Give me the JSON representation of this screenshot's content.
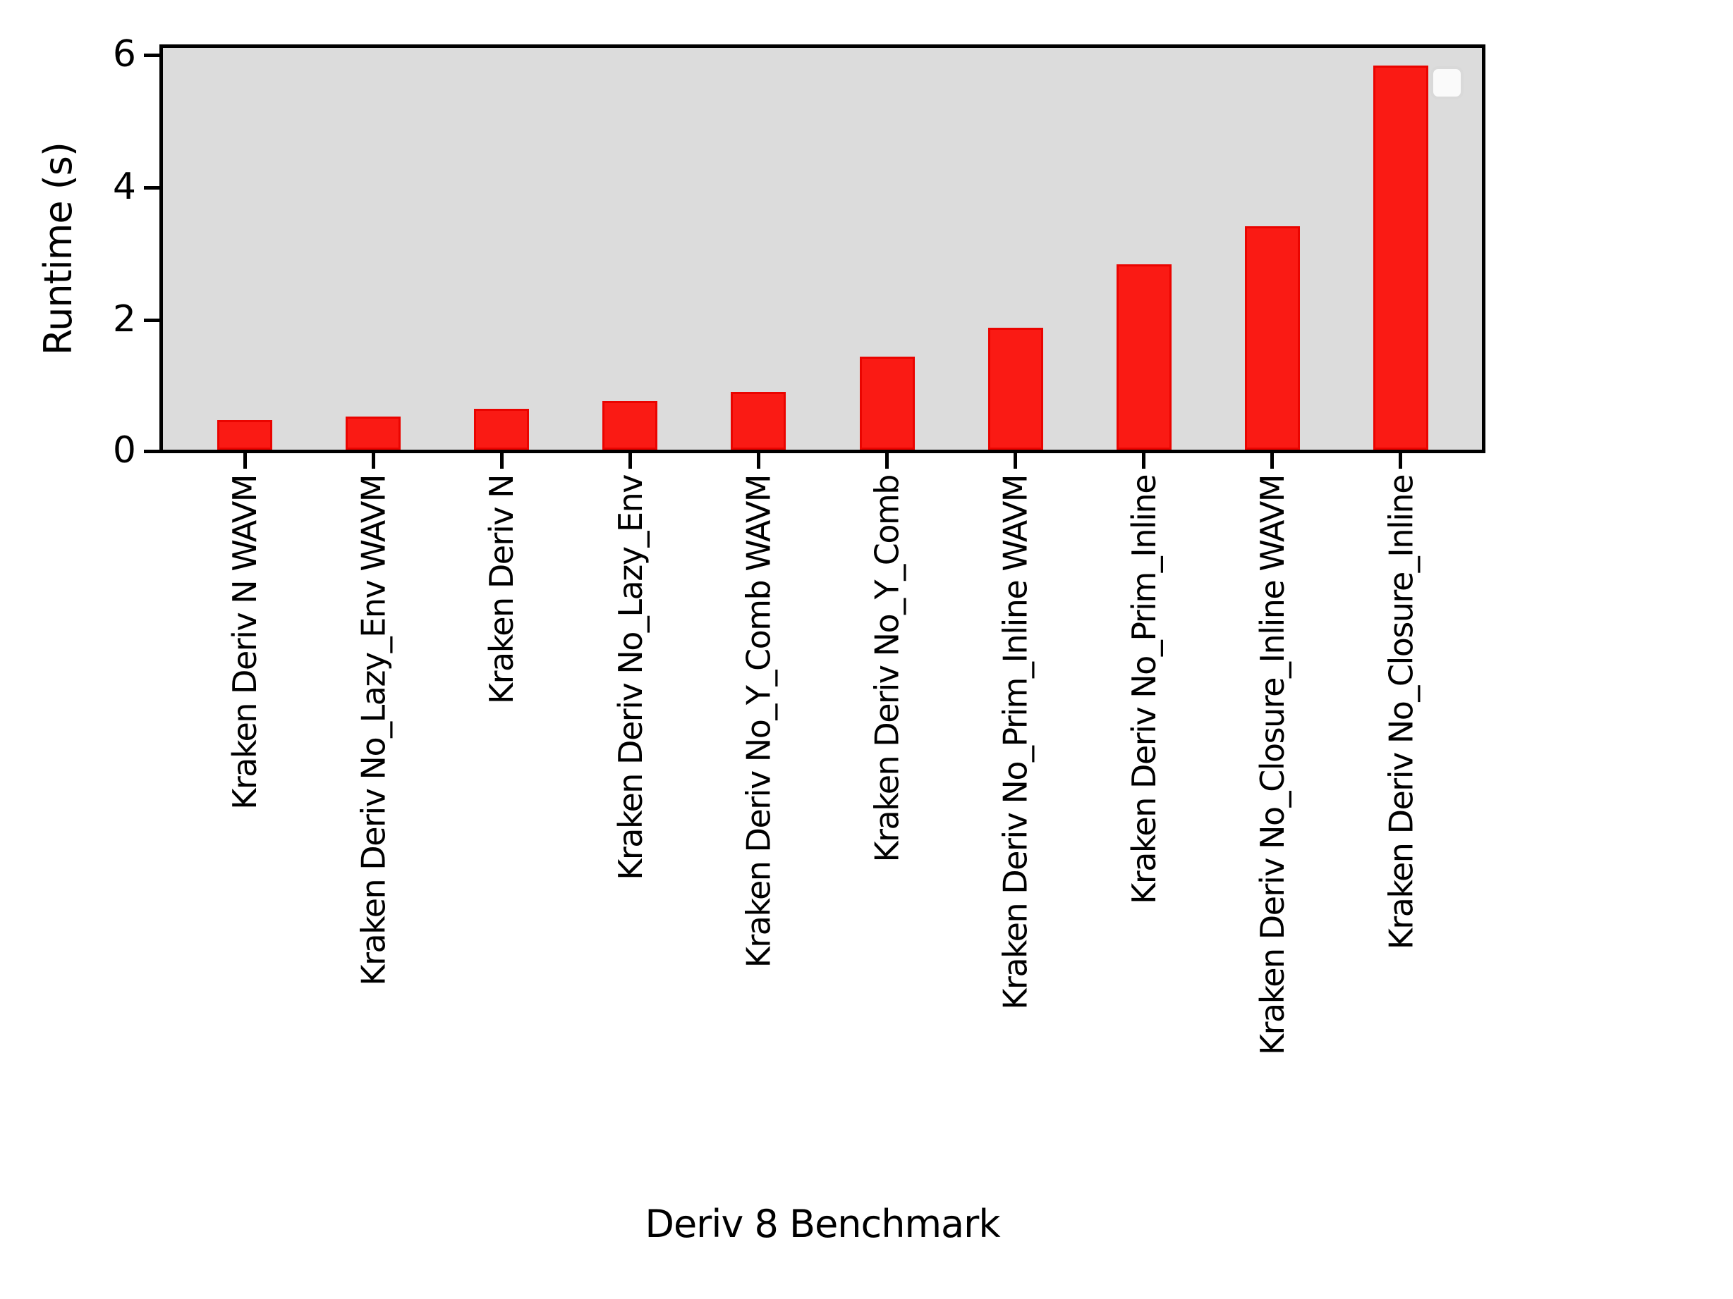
{
  "chart_data": {
    "type": "bar",
    "title": "",
    "xlabel": "Deriv 8 Benchmark",
    "ylabel": "Runtime (s)",
    "categories": [
      "Kraken Deriv N WAVM",
      "Kraken Deriv No_Lazy_Env WAVM",
      "Kraken Deriv N",
      "Kraken Deriv No_Lazy_Env",
      "Kraken Deriv No_Y_Comb WAVM",
      "Kraken Deriv No_Y_Comb",
      "Kraken Deriv No_Prim_Inline WAVM",
      "Kraken Deriv No_Prim_Inline",
      "Kraken Deriv No_Closure_Inline WAVM",
      "Kraken Deriv No_Closure_Inline"
    ],
    "values": [
      0.45,
      0.5,
      0.62,
      0.73,
      0.87,
      1.4,
      1.84,
      2.8,
      3.37,
      5.79
    ],
    "yticks": [
      0,
      2,
      4,
      6
    ],
    "ylim": [
      0,
      6.06
    ],
    "grid": false,
    "legend_position": "upper right",
    "legend_entries": [],
    "colors": {
      "bar_fill": "#fa1a14",
      "bar_edge": "#ea0400",
      "plot_background": "#dcdcdc",
      "figure_background": "#ffffff",
      "spine": "#000000",
      "text": "#000000",
      "legend_fill": "#fafafa",
      "legend_border": "#d9d9d9"
    }
  }
}
